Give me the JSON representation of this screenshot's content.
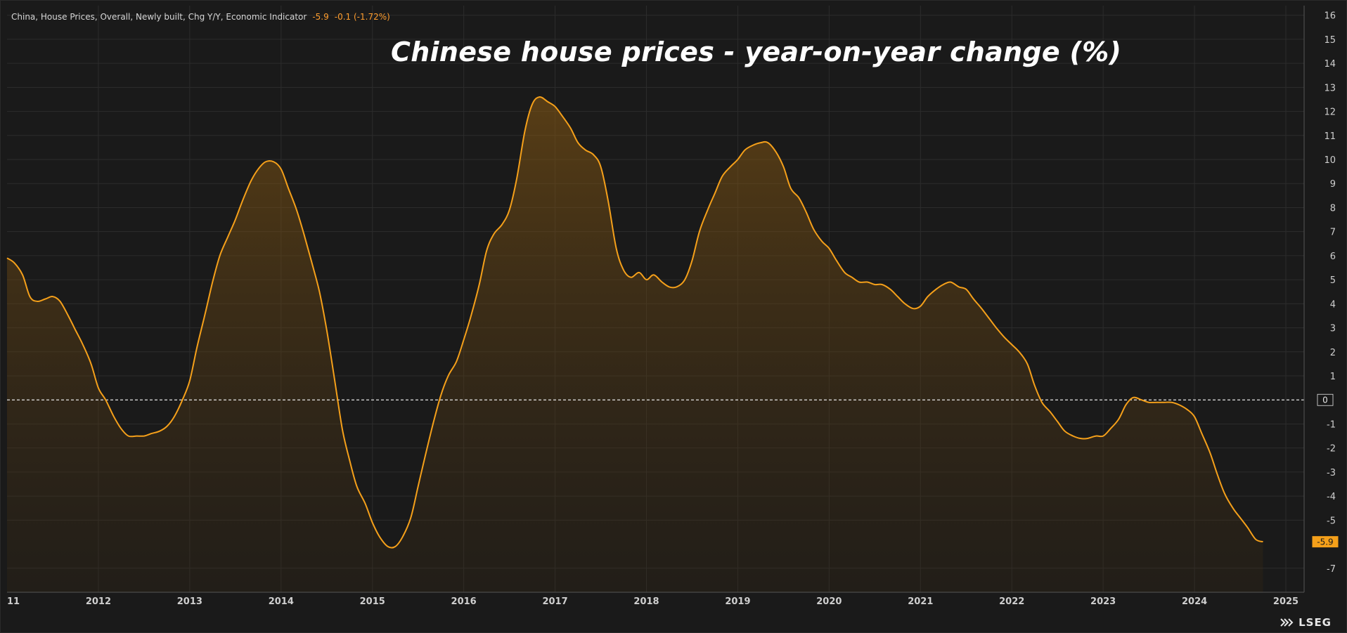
{
  "legend": {
    "series_label": "China, House Prices, Overall, Newly built, Chg Y/Y, Economic Indicator",
    "last_value": "-5.9",
    "change": "-0.1 (-1.72%)"
  },
  "logo": {
    "text": "LSEG",
    "icon": "lseg-logo-icon"
  },
  "colors": {
    "line": "#f5a01a",
    "background": "#1a1a1a",
    "grid": "#2c2c2c",
    "zero_line": "#e6e6e6",
    "badge": "#f5a01a"
  },
  "chart_data": {
    "type": "area",
    "title": "Chinese house prices - year-on-year change (%)",
    "xlabel": "",
    "ylabel": "",
    "xlim": [
      2011.0,
      2025.2
    ],
    "ylim": [
      -8,
      16.4
    ],
    "y_ticks": [
      16,
      15,
      14,
      13,
      12,
      11,
      10,
      9,
      8,
      7,
      6,
      5,
      4,
      3,
      2,
      1,
      0,
      -1,
      -2,
      -3,
      -4,
      -5,
      -7
    ],
    "x_ticks": [
      "11",
      "2012",
      "2013",
      "2014",
      "2015",
      "2016",
      "2017",
      "2018",
      "2019",
      "2020",
      "2021",
      "2022",
      "2023",
      "2024",
      "2025"
    ],
    "reference_line": 0,
    "last_value_label": "-5.9",
    "grid": true,
    "series": [
      {
        "x": [
          2011.0,
          2011.08,
          2011.17,
          2011.25,
          2011.33,
          2011.42,
          2011.5,
          2011.58,
          2011.67,
          2011.75,
          2011.83,
          2011.92,
          2012.0,
          2012.08,
          2012.17,
          2012.25,
          2012.33,
          2012.42,
          2012.5,
          2012.58,
          2012.67,
          2012.75,
          2012.83,
          2012.92,
          2013.0,
          2013.08,
          2013.17,
          2013.25,
          2013.33,
          2013.42,
          2013.5,
          2013.58,
          2013.67,
          2013.75,
          2013.83,
          2013.92,
          2014.0,
          2014.08,
          2014.17,
          2014.25,
          2014.33,
          2014.42,
          2014.5,
          2014.58,
          2014.67,
          2014.75,
          2014.83,
          2014.92,
          2015.0,
          2015.08,
          2015.17,
          2015.25,
          2015.33,
          2015.42,
          2015.5,
          2015.58,
          2015.67,
          2015.75,
          2015.83,
          2015.92,
          2016.0,
          2016.08,
          2016.17,
          2016.25,
          2016.33,
          2016.42,
          2016.5,
          2016.58,
          2016.67,
          2016.75,
          2016.83,
          2016.92,
          2017.0,
          2017.08,
          2017.17,
          2017.25,
          2017.33,
          2017.42,
          2017.5,
          2017.58,
          2017.67,
          2017.75,
          2017.83,
          2017.92,
          2018.0,
          2018.08,
          2018.17,
          2018.25,
          2018.33,
          2018.42,
          2018.5,
          2018.58,
          2018.67,
          2018.75,
          2018.83,
          2018.92,
          2019.0,
          2019.08,
          2019.17,
          2019.25,
          2019.33,
          2019.42,
          2019.5,
          2019.58,
          2019.67,
          2019.75,
          2019.83,
          2019.92,
          2020.0,
          2020.08,
          2020.17,
          2020.25,
          2020.33,
          2020.42,
          2020.5,
          2020.58,
          2020.67,
          2020.75,
          2020.83,
          2020.92,
          2021.0,
          2021.08,
          2021.17,
          2021.25,
          2021.33,
          2021.42,
          2021.5,
          2021.58,
          2021.67,
          2021.75,
          2021.83,
          2021.92,
          2022.0,
          2022.08,
          2022.17,
          2022.25,
          2022.33,
          2022.42,
          2022.5,
          2022.58,
          2022.67,
          2022.75,
          2022.83,
          2022.92,
          2023.0,
          2023.08,
          2023.17,
          2023.25,
          2023.33,
          2023.42,
          2023.5,
          2023.58,
          2023.67,
          2023.75,
          2023.83,
          2023.92,
          2024.0,
          2024.08,
          2024.17,
          2024.25,
          2024.33,
          2024.42,
          2024.5,
          2024.58,
          2024.67,
          2024.75
        ],
        "values": [
          5.9,
          5.7,
          5.2,
          4.3,
          4.1,
          4.2,
          4.3,
          4.1,
          3.5,
          2.9,
          2.3,
          1.5,
          0.5,
          0.0,
          -0.7,
          -1.2,
          -1.5,
          -1.5,
          -1.5,
          -1.4,
          -1.3,
          -1.1,
          -0.7,
          0.0,
          0.8,
          2.2,
          3.6,
          4.9,
          6.0,
          6.8,
          7.5,
          8.3,
          9.1,
          9.6,
          9.9,
          9.9,
          9.6,
          8.8,
          7.9,
          6.9,
          5.8,
          4.5,
          2.9,
          1.0,
          -1.2,
          -2.5,
          -3.6,
          -4.3,
          -5.1,
          -5.7,
          -6.1,
          -6.1,
          -5.7,
          -4.9,
          -3.6,
          -2.3,
          -0.9,
          0.2,
          1.0,
          1.6,
          2.5,
          3.5,
          4.8,
          6.2,
          6.9,
          7.3,
          7.9,
          9.2,
          11.2,
          12.3,
          12.6,
          12.4,
          12.2,
          11.8,
          11.3,
          10.7,
          10.4,
          10.2,
          9.7,
          8.3,
          6.3,
          5.4,
          5.1,
          5.3,
          5.0,
          5.2,
          4.9,
          4.7,
          4.7,
          5.0,
          5.8,
          7.0,
          7.9,
          8.6,
          9.3,
          9.7,
          10.0,
          10.4,
          10.6,
          10.7,
          10.7,
          10.3,
          9.7,
          8.8,
          8.4,
          7.8,
          7.1,
          6.6,
          6.3,
          5.8,
          5.3,
          5.1,
          4.9,
          4.9,
          4.8,
          4.8,
          4.6,
          4.3,
          4.0,
          3.8,
          3.9,
          4.3,
          4.6,
          4.8,
          4.9,
          4.7,
          4.6,
          4.2,
          3.8,
          3.4,
          3.0,
          2.6,
          2.3,
          2.0,
          1.5,
          0.6,
          -0.1,
          -0.5,
          -0.9,
          -1.3,
          -1.5,
          -1.6,
          -1.6,
          -1.5,
          -1.5,
          -1.2,
          -0.8,
          -0.2,
          0.1,
          0.0,
          -0.1,
          -0.1,
          -0.1,
          -0.1,
          -0.2,
          -0.4,
          -0.7,
          -1.4,
          -2.2,
          -3.1,
          -3.9,
          -4.5,
          -4.9,
          -5.3,
          -5.8,
          -5.9
        ]
      }
    ]
  }
}
